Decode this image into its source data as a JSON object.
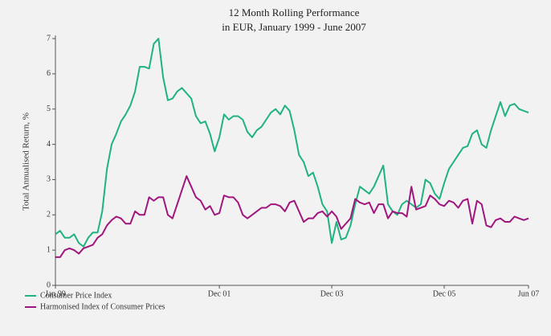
{
  "chart_data": {
    "type": "line",
    "title": "12 Month Rolling Performance",
    "subtitle": "in EUR, January 1999 - June 2007",
    "y_label": "Total Annualised Return, %",
    "categories": [
      "Jan 99",
      null,
      null,
      null,
      null,
      null,
      null,
      null,
      null,
      null,
      null,
      null,
      null,
      null,
      null,
      null,
      null,
      null,
      null,
      null,
      null,
      null,
      null,
      null,
      null,
      null,
      null,
      null,
      null,
      null,
      null,
      null,
      null,
      null,
      null,
      "Dec 01",
      null,
      null,
      null,
      null,
      null,
      null,
      null,
      null,
      null,
      null,
      null,
      null,
      null,
      null,
      null,
      null,
      null,
      null,
      null,
      null,
      null,
      null,
      null,
      "Dec 03",
      null,
      null,
      null,
      null,
      null,
      null,
      null,
      null,
      null,
      null,
      null,
      null,
      null,
      null,
      null,
      null,
      null,
      null,
      null,
      null,
      null,
      null,
      null,
      "Dec 05",
      null,
      null,
      null,
      null,
      null,
      null,
      null,
      null,
      null,
      null,
      null,
      null,
      null,
      null,
      null,
      null,
      null,
      "Jun 07"
    ],
    "series": [
      {
        "name": "Consumer Price Index",
        "color": "#1fb380",
        "values": [
          1.45,
          1.55,
          1.35,
          1.35,
          1.45,
          1.2,
          1.1,
          1.35,
          1.5,
          1.5,
          2.1,
          3.3,
          4.0,
          4.3,
          4.65,
          4.85,
          5.1,
          5.5,
          6.2,
          6.2,
          6.15,
          6.85,
          7.0,
          5.9,
          5.25,
          5.3,
          5.5,
          5.6,
          5.45,
          5.3,
          4.8,
          4.6,
          4.65,
          4.3,
          3.8,
          4.2,
          4.85,
          4.7,
          4.8,
          4.8,
          4.7,
          4.35,
          4.2,
          4.4,
          4.5,
          4.7,
          4.9,
          5.0,
          4.85,
          5.1,
          4.95,
          4.4,
          3.7,
          3.5,
          3.1,
          3.2,
          2.8,
          2.3,
          2.1,
          1.2,
          1.8,
          1.3,
          1.35,
          1.7,
          2.3,
          2.8,
          2.7,
          2.6,
          2.8,
          3.1,
          3.4,
          2.3,
          2.1,
          2.0,
          2.3,
          2.4,
          2.3,
          2.2,
          2.3,
          3.0,
          2.9,
          2.6,
          2.45,
          2.9,
          3.3,
          3.5,
          3.7,
          3.9,
          3.95,
          4.3,
          4.4,
          4.0,
          3.9,
          4.4,
          4.8,
          5.2,
          4.8,
          5.1,
          5.15,
          5.0,
          4.95,
          4.9
        ]
      },
      {
        "name": "Harmonised Index of Consumer Prices",
        "color": "#a0167e",
        "values": [
          0.8,
          0.8,
          1.0,
          1.05,
          1.0,
          0.9,
          1.05,
          1.1,
          1.15,
          1.35,
          1.45,
          1.7,
          1.85,
          1.95,
          1.9,
          1.75,
          1.75,
          2.1,
          2.0,
          2.0,
          2.5,
          2.4,
          2.5,
          2.5,
          2.0,
          1.9,
          2.3,
          2.7,
          3.1,
          2.8,
          2.5,
          2.4,
          2.15,
          2.25,
          2.0,
          2.05,
          2.55,
          2.5,
          2.5,
          2.35,
          2.0,
          1.9,
          2.0,
          2.1,
          2.2,
          2.2,
          2.3,
          2.3,
          2.25,
          2.1,
          2.35,
          2.4,
          2.1,
          1.8,
          1.9,
          1.9,
          2.05,
          2.1,
          1.95,
          2.1,
          1.95,
          1.6,
          1.75,
          1.9,
          2.45,
          2.35,
          2.3,
          2.35,
          2.05,
          2.3,
          2.3,
          1.9,
          2.1,
          2.05,
          2.05,
          1.95,
          2.8,
          2.15,
          2.2,
          2.25,
          2.55,
          2.45,
          2.3,
          2.25,
          2.4,
          2.35,
          2.2,
          2.4,
          2.45,
          1.75,
          2.4,
          2.3,
          1.7,
          1.65,
          1.85,
          1.9,
          1.8,
          1.8,
          1.95,
          1.9,
          1.85,
          1.9
        ]
      }
    ],
    "ylim": [
      0,
      7
    ],
    "yticks": [
      0,
      1,
      2,
      3,
      4,
      5,
      6,
      7
    ],
    "legend": "bottom-left"
  }
}
